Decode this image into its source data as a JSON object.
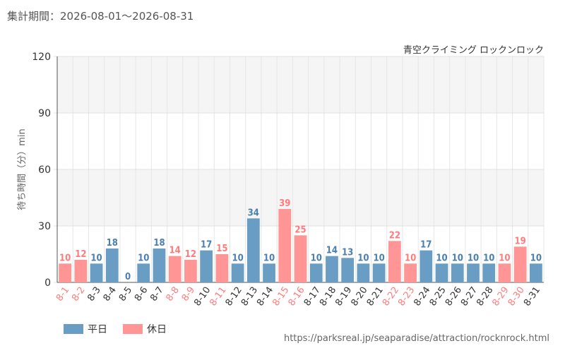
{
  "header": {
    "period": "集計期間：2026-08-01～2026-08-31",
    "facility": "青空クライミング ロックンロック"
  },
  "legend": {
    "weekday": "平日",
    "holiday": "休日"
  },
  "source": "https://parksreal.jp/seaparadise/attraction/rocknrock.html",
  "colors": {
    "weekday": "#6a9dc4",
    "holiday": "#ff9595",
    "weekday_label": "#4a7fb0",
    "holiday_label": "#ff7b7b"
  },
  "chart_data": {
    "type": "bar",
    "ylabel": "待ち時間（分）min",
    "ylim": [
      0,
      120
    ],
    "yticks": [
      0,
      30,
      60,
      90,
      120
    ],
    "categories": [
      "8-1",
      "8-2",
      "8-3",
      "8-4",
      "8-5",
      "8-6",
      "8-7",
      "8-8",
      "8-9",
      "8-10",
      "8-11",
      "8-12",
      "8-13",
      "8-14",
      "8-15",
      "8-16",
      "8-17",
      "8-18",
      "8-19",
      "8-20",
      "8-21",
      "8-22",
      "8-23",
      "8-24",
      "8-25",
      "8-26",
      "8-27",
      "8-28",
      "8-29",
      "8-30",
      "8-31"
    ],
    "values": [
      10,
      12,
      10,
      18,
      0,
      10,
      18,
      14,
      12,
      17,
      15,
      10,
      34,
      10,
      39,
      25,
      10,
      14,
      13,
      10,
      10,
      22,
      10,
      17,
      10,
      10,
      10,
      10,
      10,
      19,
      10
    ],
    "day_type": [
      "holiday",
      "holiday",
      "weekday",
      "weekday",
      "weekday",
      "weekday",
      "weekday",
      "holiday",
      "holiday",
      "weekday",
      "holiday",
      "weekday",
      "weekday",
      "weekday",
      "holiday",
      "holiday",
      "weekday",
      "weekday",
      "weekday",
      "weekday",
      "weekday",
      "holiday",
      "holiday",
      "weekday",
      "weekday",
      "weekday",
      "weekday",
      "weekday",
      "holiday",
      "holiday",
      "weekday"
    ],
    "grid": true
  }
}
